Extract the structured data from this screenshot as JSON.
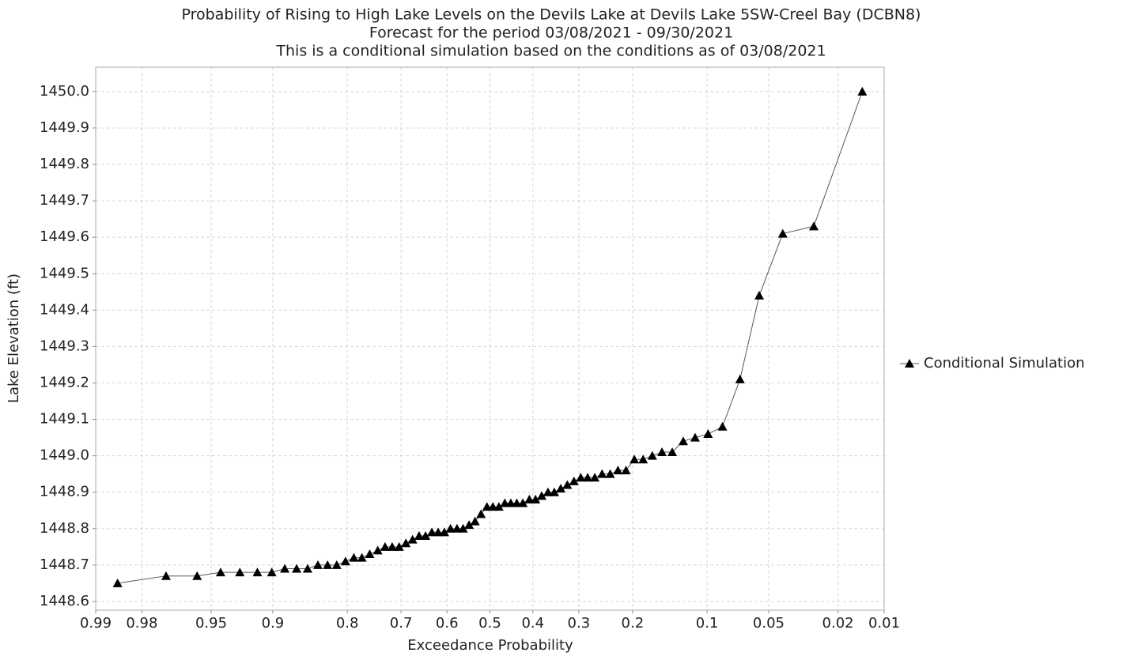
{
  "chart_data": {
    "type": "line",
    "title": [
      "Probability of Rising to High Lake Levels on the Devils Lake at Devils Lake 5SW-Creel Bay (DCBN8)",
      "Forecast for the period 03/08/2021 - 09/30/2021",
      "This is a conditional simulation based on the conditions as of 03/08/2021"
    ],
    "x_label": "Exceedance Probability",
    "y_label": "Lake Elevation (ft)",
    "xscale": "probit",
    "grid": true,
    "legend": "right",
    "xlim": [
      0.99,
      0.01
    ],
    "xticks": [
      0.99,
      0.98,
      0.95,
      0.9,
      0.8,
      0.7,
      0.6,
      0.5,
      0.4,
      0.3,
      0.2,
      0.1,
      0.05,
      0.02,
      0.01
    ],
    "ylim": [
      1448.576,
      1450.067
    ],
    "yticks": [
      1448.6,
      1448.7,
      1448.8,
      1448.9,
      {
        "value": 1449.0,
        "label": "1449.0"
      },
      1449.1,
      1449.2,
      1449.3,
      1449.4,
      1449.5,
      1449.6,
      1449.7,
      1449.8,
      1449.9,
      {
        "value": 1450.0,
        "label": "1450.0"
      }
    ],
    "x": [
      0.986,
      0.972,
      0.958,
      0.944,
      0.93,
      0.915,
      0.901,
      0.887,
      0.873,
      0.859,
      0.845,
      0.831,
      0.817,
      0.803,
      0.789,
      0.775,
      0.761,
      0.746,
      0.732,
      0.718,
      0.704,
      0.69,
      0.676,
      0.662,
      0.648,
      0.634,
      0.62,
      0.606,
      0.592,
      0.577,
      0.563,
      0.549,
      0.535,
      0.521,
      0.507,
      0.493,
      0.479,
      0.465,
      0.451,
      0.437,
      0.423,
      0.408,
      0.394,
      0.38,
      0.366,
      0.352,
      0.338,
      0.324,
      0.31,
      0.296,
      0.282,
      0.268,
      0.254,
      0.239,
      0.225,
      0.211,
      0.197,
      0.183,
      0.169,
      0.155,
      0.141,
      0.127,
      0.113,
      0.099,
      0.085,
      0.07,
      0.056,
      0.042,
      0.028,
      0.014
    ],
    "series": [
      {
        "name": "Conditional Simulation",
        "color": "#000000",
        "line_color": "#555555",
        "values": [
          1448.65,
          1448.67,
          1448.67,
          1448.68,
          1448.68,
          1448.68,
          1448.68,
          1448.69,
          1448.69,
          1448.69,
          1448.7,
          1448.7,
          1448.7,
          1448.71,
          1448.72,
          1448.72,
          1448.73,
          1448.74,
          1448.75,
          1448.75,
          1448.75,
          1448.76,
          1448.77,
          1448.78,
          1448.78,
          1448.79,
          1448.79,
          1448.79,
          1448.8,
          1448.8,
          1448.8,
          1448.81,
          1448.82,
          1448.84,
          1448.86,
          1448.86,
          1448.86,
          1448.87,
          1448.87,
          1448.87,
          1448.87,
          1448.88,
          1448.88,
          1448.89,
          1448.9,
          1448.9,
          1448.91,
          1448.92,
          1448.93,
          1448.94,
          1448.94,
          1448.94,
          1448.95,
          1448.95,
          1448.96,
          1448.96,
          1448.99,
          1448.99,
          1449.0,
          1449.01,
          1449.01,
          1449.04,
          1449.05,
          1449.06,
          1449.08,
          1449.21,
          1449.44,
          1449.61,
          1449.63,
          1450.0
        ]
      }
    ]
  }
}
